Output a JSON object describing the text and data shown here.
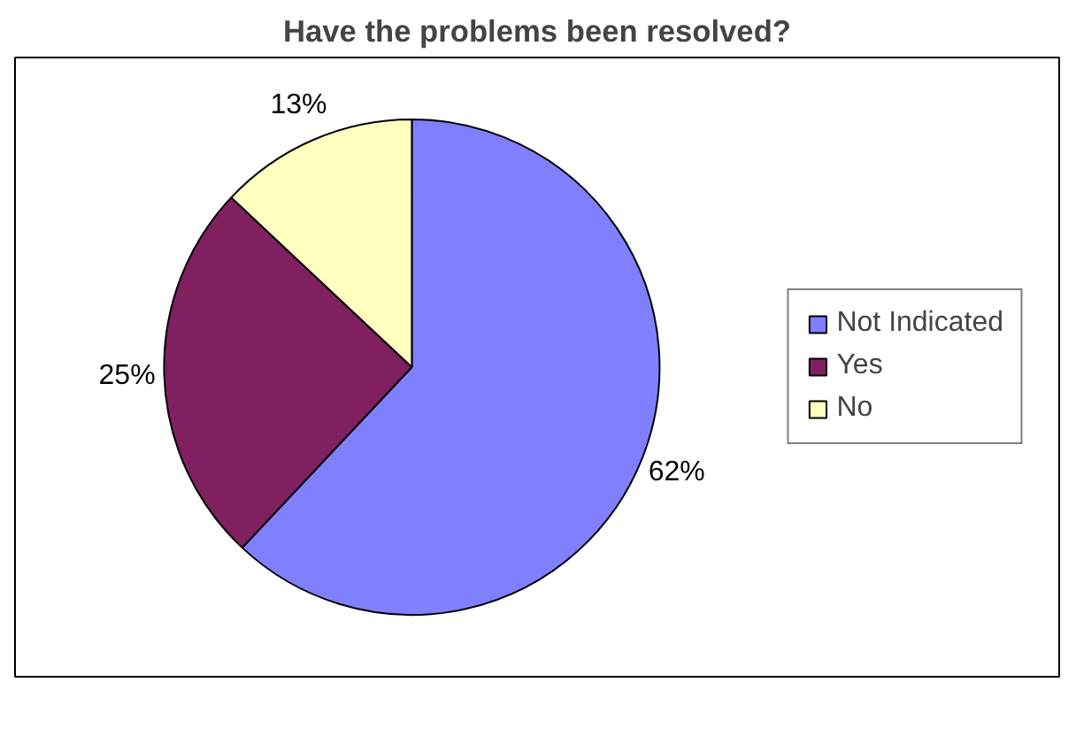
{
  "chart_data": {
    "type": "pie",
    "title": "Have the problems been resolved?",
    "categories": [
      "Not Indicated",
      "Yes",
      "No"
    ],
    "values": [
      62,
      25,
      13
    ],
    "value_labels": [
      "62%",
      "25%",
      "13%"
    ],
    "colors": [
      "#8080ff",
      "#802060",
      "#ffffc0"
    ],
    "legend": "right"
  }
}
